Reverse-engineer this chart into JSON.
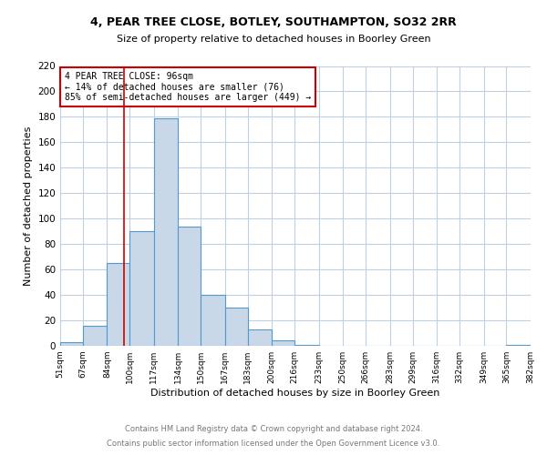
{
  "title1": "4, PEAR TREE CLOSE, BOTLEY, SOUTHAMPTON, SO32 2RR",
  "title2": "Size of property relative to detached houses in Boorley Green",
  "xlabel": "Distribution of detached houses by size in Boorley Green",
  "ylabel": "Number of detached properties",
  "bin_edges": [
    51,
    67,
    84,
    100,
    117,
    134,
    150,
    167,
    183,
    200,
    216,
    233,
    250,
    266,
    283,
    299,
    316,
    332,
    349,
    365,
    382
  ],
  "bin_counts": [
    3,
    16,
    65,
    90,
    179,
    94,
    40,
    30,
    13,
    4,
    1,
    0,
    0,
    0,
    0,
    0,
    0,
    0,
    0,
    1
  ],
  "bar_color": "#c8d8e8",
  "bar_edgecolor": "#5599cc",
  "property_line_x": 96,
  "property_line_color": "#cc0000",
  "annotation_title": "4 PEAR TREE CLOSE: 96sqm",
  "annotation_line1": "← 14% of detached houses are smaller (76)",
  "annotation_line2": "85% of semi-detached houses are larger (449) →",
  "annotation_box_edgecolor": "#cc0000",
  "ylim": [
    0,
    220
  ],
  "tick_labels": [
    "51sqm",
    "67sqm",
    "84sqm",
    "100sqm",
    "117sqm",
    "134sqm",
    "150sqm",
    "167sqm",
    "183sqm",
    "200sqm",
    "216sqm",
    "233sqm",
    "250sqm",
    "266sqm",
    "283sqm",
    "299sqm",
    "316sqm",
    "332sqm",
    "349sqm",
    "365sqm",
    "382sqm"
  ],
  "footer1": "Contains HM Land Registry data © Crown copyright and database right 2024.",
  "footer2": "Contains public sector information licensed under the Open Government Licence v3.0.",
  "background_color": "#ffffff",
  "grid_color": "#c0d0e0"
}
